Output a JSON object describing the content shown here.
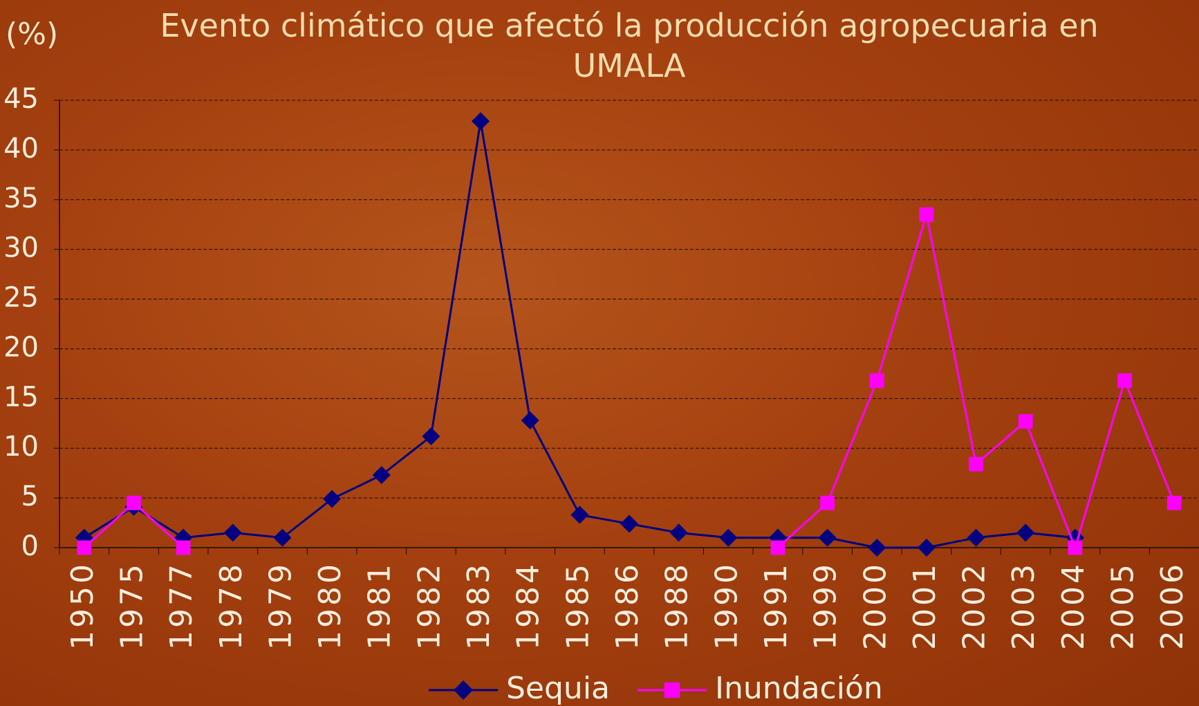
{
  "chart_data": {
    "type": "line",
    "title": "Evento climático que afectó la producción agropecuaria en UMALA",
    "y_label": "(%)",
    "categories": [
      "1950",
      "1975",
      "1977",
      "1978",
      "1979",
      "1980",
      "1981",
      "1982",
      "1983",
      "1984",
      "1985",
      "1986",
      "1988",
      "1990",
      "1991",
      "1999",
      "2000",
      "2001",
      "2002",
      "2003",
      "2004",
      "2005",
      "2006"
    ],
    "series": [
      {
        "name": "Sequia",
        "color": "#000080",
        "marker": "diamond",
        "values": [
          1,
          4.1,
          1,
          1.5,
          1,
          4.9,
          7.3,
          11.2,
          42.9,
          12.8,
          3.3,
          2.4,
          1.5,
          1,
          1,
          1,
          0,
          0,
          1,
          1.5,
          1,
          null,
          null
        ]
      },
      {
        "name": "Inundación",
        "color": "#ff00ff",
        "marker": "square",
        "values": [
          0,
          4.5,
          0,
          null,
          null,
          null,
          null,
          null,
          null,
          null,
          null,
          null,
          null,
          null,
          0,
          4.5,
          16.8,
          33.5,
          8.4,
          12.7,
          0,
          16.8,
          4.5
        ]
      }
    ],
    "ylim": [
      0,
      45
    ],
    "yticks": [
      0,
      5,
      10,
      15,
      20,
      25,
      30,
      35,
      40,
      45
    ],
    "grid": true,
    "legend": "bottom"
  }
}
